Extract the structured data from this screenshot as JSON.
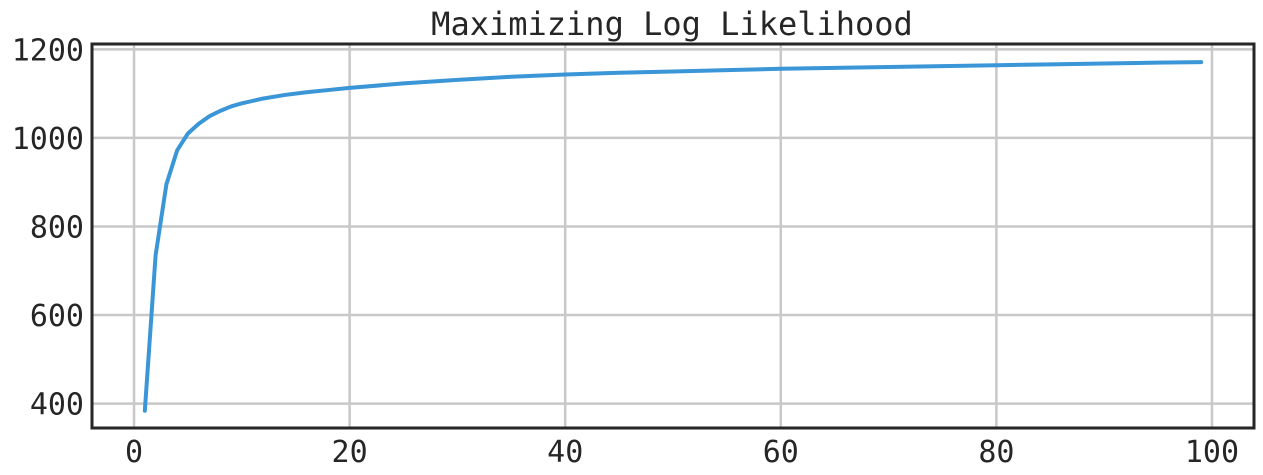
{
  "chart_data": {
    "type": "line",
    "title": "Maximizing Log Likelihood",
    "xlabel": "",
    "ylabel": "",
    "xlim": [
      -3.9,
      103.9
    ],
    "ylim": [
      345,
      1212
    ],
    "xticks": [
      0,
      20,
      40,
      60,
      80,
      100
    ],
    "yticks": [
      400,
      600,
      800,
      1000,
      1200
    ],
    "xtick_labels": [
      "0",
      "20",
      "40",
      "60",
      "80",
      "100"
    ],
    "ytick_labels": [
      "400",
      "600",
      "800",
      "1000",
      "1200"
    ],
    "grid": true,
    "legend": "none",
    "colors": {
      "line": "#3a96d6",
      "grid": "#c8c8c8",
      "frame": "#262626",
      "text": "#262626",
      "background": "#ffffff"
    },
    "series": [
      {
        "x": [
          1,
          2,
          3,
          4,
          5,
          6,
          7,
          8,
          9,
          10,
          12,
          14,
          16,
          18,
          20,
          25,
          30,
          35,
          40,
          45,
          50,
          55,
          60,
          65,
          70,
          75,
          80,
          85,
          90,
          95,
          99
        ],
        "y": [
          384,
          735,
          895,
          972,
          1010,
          1032,
          1049,
          1061,
          1071,
          1078,
          1089,
          1097,
          1103,
          1108,
          1113,
          1123,
          1131,
          1138,
          1143,
          1147,
          1150,
          1153,
          1156,
          1158,
          1160,
          1162,
          1164,
          1166,
          1168,
          1170,
          1171
        ]
      }
    ]
  }
}
